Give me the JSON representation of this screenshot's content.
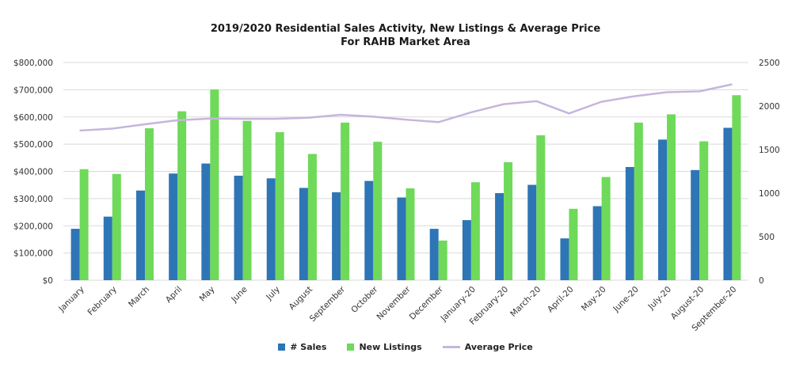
{
  "chart_data": {
    "type": "bar",
    "title": "2019/2020 Residential Sales Activity, New Listings & Average Price",
    "subtitle": "For RAHB Market Area",
    "categories": [
      "January",
      "February",
      "March",
      "April",
      "May",
      "June",
      "July",
      "August",
      "September",
      "October",
      "November",
      "December",
      "January-20",
      "February-20",
      "March-20",
      "April-20",
      "May-20",
      "June-20",
      "July-20",
      "August-20",
      "September-20"
    ],
    "left_axis": {
      "ticks": [
        "$0",
        "$100,000",
        "$200,000",
        "$300,000",
        "$400,000",
        "$500,000",
        "$600,000",
        "$700,000",
        "$800,000"
      ],
      "ylim": [
        0,
        800000
      ]
    },
    "right_axis": {
      "ticks": [
        "0",
        "500",
        "1000",
        "1500",
        "2000",
        "2500"
      ],
      "ylim": [
        0,
        2500
      ]
    },
    "series": [
      {
        "name": "# Sales",
        "type": "bar",
        "axis": "right",
        "color": "#2e75b6",
        "values": [
          590,
          730,
          1030,
          1225,
          1340,
          1200,
          1170,
          1060,
          1010,
          1140,
          950,
          590,
          690,
          1000,
          1095,
          480,
          850,
          1300,
          1615,
          1265,
          1750
        ]
      },
      {
        "name": "New Listings",
        "type": "bar",
        "axis": "right",
        "color": "#6fd95a",
        "values": [
          1275,
          1220,
          1745,
          1940,
          2190,
          1830,
          1700,
          1450,
          1810,
          1590,
          1055,
          455,
          1125,
          1355,
          1665,
          820,
          1185,
          1810,
          1905,
          1595,
          2125
        ]
      },
      {
        "name": "Average Price",
        "type": "line",
        "axis": "left",
        "color": "#c5b6dd",
        "values": [
          550000,
          557000,
          573000,
          588000,
          594000,
          593000,
          593000,
          597000,
          608000,
          601000,
          590000,
          581000,
          617000,
          647000,
          658000,
          613000,
          656000,
          676000,
          691000,
          694000,
          720000
        ]
      }
    ],
    "legend": "bottom",
    "grid": true
  }
}
